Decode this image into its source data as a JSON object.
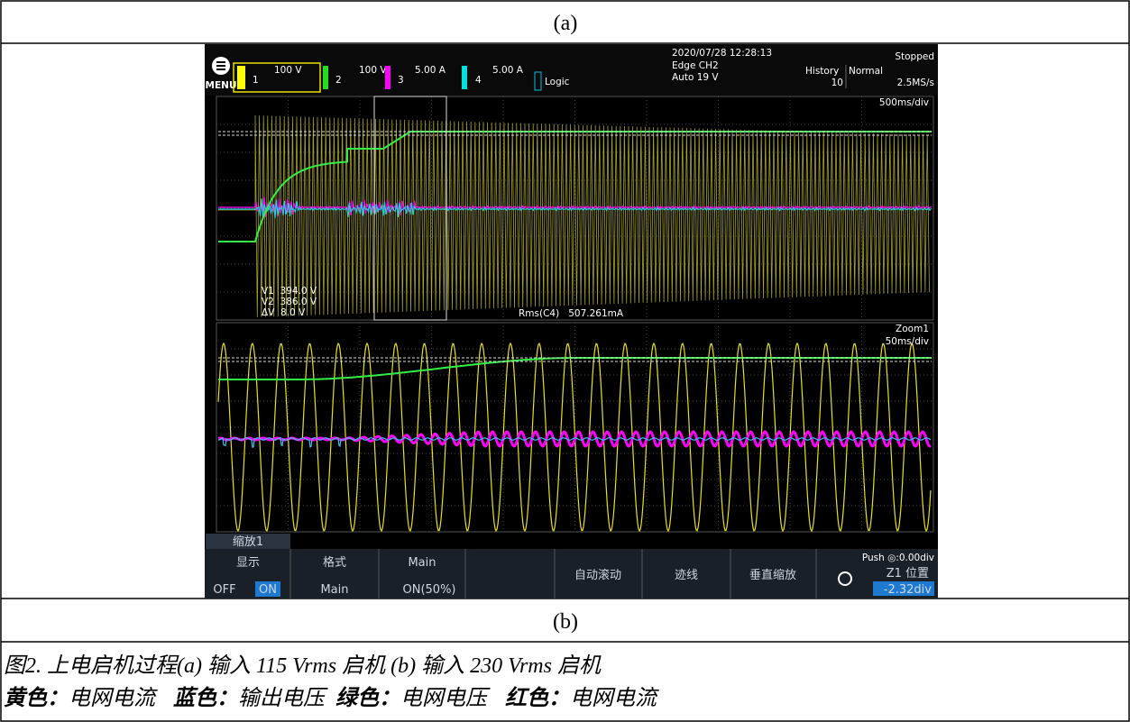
{
  "panel_a_label": "(a)",
  "panel_b_label": "(b)",
  "scope": {
    "menu": "MENU",
    "channels": [
      {
        "number": "1",
        "scale": "100 V"
      },
      {
        "number": "2",
        "scale": "100 V"
      },
      {
        "number": "3",
        "scale": "5.00 A"
      },
      {
        "number": "4",
        "scale": "5.00 A"
      }
    ],
    "logic": "Logic",
    "datetime": "2020/07/28 12:28:13",
    "trigger": "Edge CH2",
    "trigger_level": "Auto 19 V",
    "status": "Stopped",
    "history_label": "History",
    "history_value": "10",
    "mode": "Normal",
    "sample_rate": "2.5MS/s",
    "timebase": "500ms/div",
    "cursors": [
      "V1  394.0 V",
      "V2  386.0 V",
      "ΔV  8.0 V"
    ],
    "measurement": "Rms(C4)   507.261mA",
    "zoom_label": "Zoom1",
    "zoom_timebase": "50ms/div",
    "menu_tab": "缩放1",
    "softkeys": {
      "display": "显示",
      "off": "OFF",
      "on": "ON",
      "format": "格式",
      "format_value": "Main",
      "main": "Main",
      "main_value": "ON(50%)",
      "autoscroll": "自动滚动",
      "trace": "迹线",
      "vertical_zoom": "垂直缩放",
      "push": "Push ◎:0.00div",
      "position": "Z1 位置",
      "position_value": "-2.32div"
    }
  },
  "caption": {
    "line1": "图2. 上电启机过程(a) 输入 115 Vrms 启机 (b) 输入 230 Vrms 启机",
    "line2": [
      {
        "label": "黄色：",
        "text": "电网电流"
      },
      {
        "label": "蓝色：",
        "text": "输出电压"
      },
      {
        "label": "绿色：",
        "text": "电网电压"
      },
      {
        "label": "红色：",
        "text": "电网电流"
      }
    ]
  }
}
